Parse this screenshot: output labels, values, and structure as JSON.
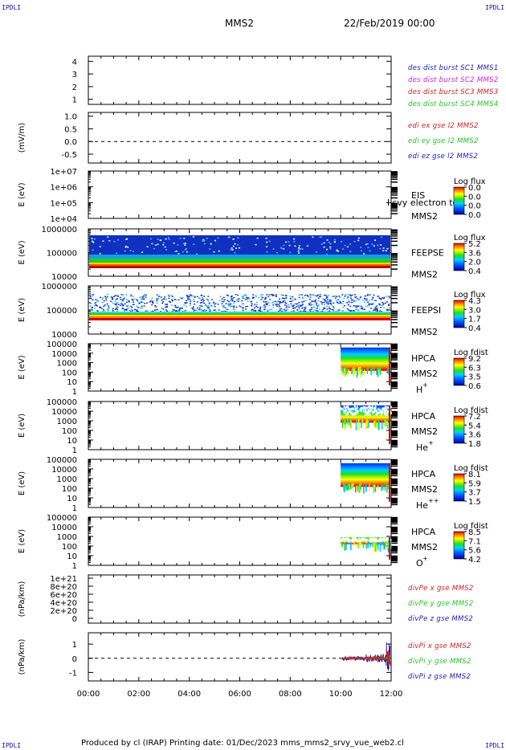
{
  "header": {
    "corner_label": "IPDLI",
    "spacecraft": "MMS2",
    "date": "22/Feb/2019 00:00"
  },
  "footer": {
    "text": "Produced by cl (IRAP)   Printing date: 01/Dec/2023   mms_mms2_srvy_vue_web2.cl"
  },
  "colors": {
    "dark_blue": "#1a1ab4",
    "magenta": "#d21ed2",
    "red": "#d21e1e",
    "green": "#1ec81e"
  },
  "chart_data": [
    {
      "type": "line",
      "id": "panel-dist",
      "yticks": [
        "1",
        "2",
        "3",
        "4"
      ],
      "ylim": [
        0.6,
        4.4
      ],
      "legend": [
        {
          "text": "des dist burst SC1 MMS1",
          "color": "#1a1ab4"
        },
        {
          "text": "des dist burst SC2 MMS2",
          "color": "#d21ed2"
        },
        {
          "text": "des dist burst SC3 MMS3",
          "color": "#d21e1e"
        },
        {
          "text": "des dist burst SC4 MMS4",
          "color": "#1ec81e"
        }
      ]
    },
    {
      "type": "line",
      "id": "panel-edi",
      "ylabel": "(mV/m)",
      "yticks": [
        "1.0",
        "0.5",
        "0.0",
        "-0.5"
      ],
      "ylim": [
        -0.85,
        1.15
      ],
      "zero_line": true,
      "legend": [
        {
          "text": "edi ex gse l2 MMS2",
          "color": "#d21e1e"
        },
        {
          "text": "edi ey gse l2 MMS2",
          "color": "#1ec81e"
        },
        {
          "text": "edi ez gse l2 MMS2",
          "color": "#1a1ab4"
        }
      ]
    },
    {
      "type": "heatmap",
      "id": "panel-eis",
      "ylabel": "E (eV)",
      "yticks": [
        "1e+07",
        "1e+06",
        "1e+05",
        "1e+04"
      ],
      "instrument": "EIS",
      "spacecraft": "MMS2",
      "overlay_text": "l svy electron to",
      "cbar_title": "Log flux",
      "cbar_ticks": [
        "0.0",
        "0.0",
        "0.0",
        "0.0"
      ]
    },
    {
      "type": "heatmap",
      "id": "panel-feepse",
      "ylabel": "E (eV)",
      "yticks": [
        "1000000",
        "100000",
        "10000"
      ],
      "instrument": "FEEPSE",
      "spacecraft": "MMS2",
      "cbar_title": "Log flux",
      "cbar_ticks": [
        "5.2",
        "3.6",
        "2.0",
        "0.4"
      ]
    },
    {
      "type": "heatmap",
      "id": "panel-feepsi",
      "ylabel": "E (eV)",
      "yticks": [
        "1000000",
        "100000",
        "10000"
      ],
      "instrument": "FEEPSI",
      "spacecraft": "MMS2",
      "cbar_title": "Log flux",
      "cbar_ticks": [
        "4.3",
        "3.0",
        "1.7",
        "0.4"
      ]
    },
    {
      "type": "heatmap",
      "id": "panel-hpca-h",
      "ylabel": "E (eV)",
      "yticks": [
        "100000",
        "10000",
        "1000",
        "100",
        "10",
        "1"
      ],
      "instrument": "HPCA",
      "spacecraft": "MMS2",
      "species": "H",
      "species_sup": "+",
      "cbar_title": "Log fdist",
      "cbar_ticks": [
        "9.2",
        "6.3",
        "3.5",
        "0.6"
      ]
    },
    {
      "type": "heatmap",
      "id": "panel-hpca-he1",
      "ylabel": "E (eV)",
      "yticks": [
        "100000",
        "10000",
        "1000",
        "100",
        "10",
        "1"
      ],
      "instrument": "HPCA",
      "spacecraft": "MMS2",
      "species": "He",
      "species_sup": "+",
      "cbar_title": "Log fdist",
      "cbar_ticks": [
        "7.2",
        "5.4",
        "3.6",
        "1.8"
      ]
    },
    {
      "type": "heatmap",
      "id": "panel-hpca-he2",
      "ylabel": "E (eV)",
      "yticks": [
        "100000",
        "10000",
        "1000",
        "100",
        "10",
        "1"
      ],
      "instrument": "HPCA",
      "spacecraft": "MMS2",
      "species": "He",
      "species_sup": "++",
      "cbar_title": "Log fdist",
      "cbar_ticks": [
        "8.1",
        "5.9",
        "3.7",
        "1.5"
      ]
    },
    {
      "type": "heatmap",
      "id": "panel-hpca-o",
      "ylabel": "E (eV)",
      "yticks": [
        "100000",
        "10000",
        "1000",
        "100",
        "10",
        "1"
      ],
      "instrument": "HPCA",
      "spacecraft": "MMS2",
      "species": "O",
      "species_sup": "+",
      "cbar_title": "Log fdist",
      "cbar_ticks": [
        "8.5",
        "7.1",
        "5.6",
        "4.2"
      ]
    },
    {
      "type": "line",
      "id": "panel-divpe",
      "ylabel": "(nPa/km)",
      "yticks": [
        "1e+21",
        "8e+20",
        "6e+20",
        "4e+20",
        "2e+20",
        "0"
      ],
      "ylim": [
        -1.2e+20,
        1.08e+21
      ],
      "legend": [
        {
          "text": "divPe x gse MMS2",
          "color": "#d21e1e"
        },
        {
          "text": "divPe y gse MMS2",
          "color": "#1ec81e"
        },
        {
          "text": "divPe z gse MMS2",
          "color": "#1a1ab4"
        }
      ]
    },
    {
      "type": "line",
      "id": "panel-divpi",
      "ylabel": "(nPa/km)",
      "yticks": [
        "1",
        "0",
        "-1"
      ],
      "ylim": [
        -1.6,
        1.8
      ],
      "zero_line": true,
      "legend": [
        {
          "text": "divPi x gse MMS2",
          "color": "#d21e1e"
        },
        {
          "text": "divPi y gse MMS2",
          "color": "#1ec81e"
        },
        {
          "text": "divPi z gse MMS2",
          "color": "#1a1ab4"
        }
      ]
    }
  ],
  "xaxis": {
    "ticks": [
      "00:00",
      "02:00",
      "04:00",
      "06:00",
      "08:00",
      "10:00",
      "12:00"
    ],
    "xlim_hours": [
      0,
      12
    ]
  }
}
